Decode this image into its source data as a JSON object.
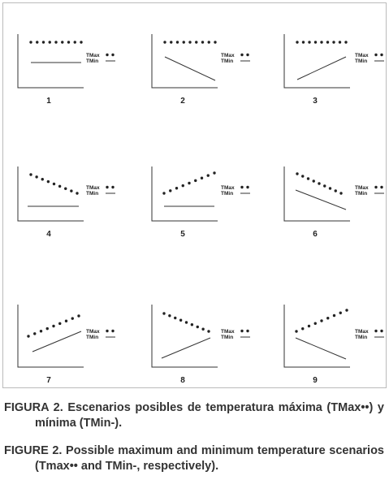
{
  "figure": {
    "panels": [
      {
        "label": "1",
        "legend": [
          "TMax",
          "TMin"
        ]
      },
      {
        "label": "2",
        "legend": [
          "TMax",
          "TMin"
        ]
      },
      {
        "label": "3",
        "legend": [
          "TMax",
          "TMin"
        ]
      },
      {
        "label": "4",
        "legend": [
          "TMax",
          "TMin"
        ]
      },
      {
        "label": "5",
        "legend": [
          "TMax",
          "TMin"
        ]
      },
      {
        "label": "6",
        "legend": [
          "TMax",
          "TMin"
        ]
      },
      {
        "label": "7",
        "legend": [
          "TMax",
          "TMin"
        ]
      },
      {
        "label": "8",
        "legend": [
          "TMax",
          "TMin"
        ]
      },
      {
        "label": "9",
        "legend": [
          "TMax",
          "TMin"
        ]
      }
    ],
    "captions": [
      "FIGURA 2. Escenarios posibles de temperatura máxima (TMax••) y mínima (TMin-).",
      "FIGURE 2. Possible maximum and minimum temperature scenarios (Tmax•• and TMin-, respectively)."
    ]
  }
}
